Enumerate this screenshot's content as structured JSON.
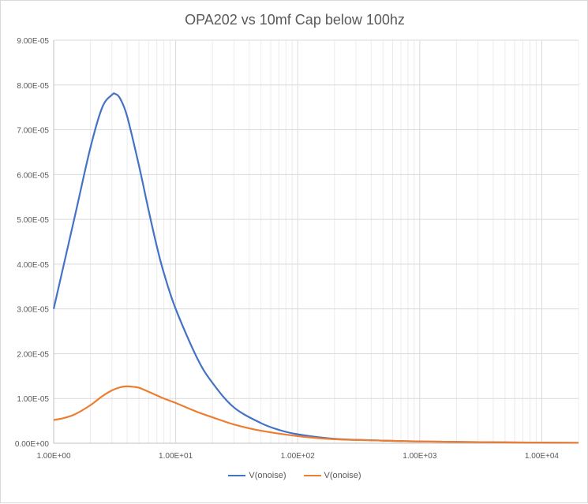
{
  "chart_data": {
    "type": "line",
    "title": "OPA202 vs 10mf Cap below 100hz",
    "xlabel": "",
    "ylabel": "",
    "xscale": "log",
    "xlim": [
      1,
      20000
    ],
    "ylim": [
      0,
      9e-05
    ],
    "grid": true,
    "legend_position": "bottom",
    "y_ticks": [
      "0.00E+00",
      "1.00E-05",
      "2.00E-05",
      "3.00E-05",
      "4.00E-05",
      "5.00E-05",
      "6.00E-05",
      "7.00E-05",
      "8.00E-05",
      "9.00E-05"
    ],
    "x_ticks": [
      "1.00E+00",
      "1.00E+01",
      "1.00E+02",
      "1.00E+03",
      "1.00E+04"
    ],
    "series": [
      {
        "name": "V(onoise)",
        "color": "#4472C4",
        "x": [
          1,
          1.5,
          2,
          2.5,
          3,
          3.2,
          3.5,
          4,
          5,
          6,
          7,
          8,
          10,
          15,
          20,
          30,
          50,
          70,
          100,
          200,
          500,
          1000,
          5000,
          20000
        ],
        "y": [
          3e-05,
          5.1e-05,
          6.6e-05,
          7.5e-05,
          7.78e-05,
          7.8e-05,
          7.7e-05,
          7.3e-05,
          6.2e-05,
          5.2e-05,
          4.4e-05,
          3.8e-05,
          3e-05,
          1.9e-05,
          1.35e-05,
          8e-06,
          4.5e-06,
          3e-06,
          2e-06,
          1e-06,
          6e-07,
          4e-07,
          2e-07,
          1e-07
        ]
      },
      {
        "name": "V(onoise)",
        "color": "#ED7D31",
        "x": [
          1,
          1.2,
          1.5,
          2,
          2.5,
          3,
          3.5,
          4,
          4.5,
          5,
          6,
          7,
          8,
          10,
          15,
          20,
          30,
          50,
          100,
          200,
          500,
          1000,
          5000,
          20000
        ],
        "y": [
          5.2e-06,
          5.6e-06,
          6.5e-06,
          8.5e-06,
          1.05e-05,
          1.18e-05,
          1.25e-05,
          1.27e-05,
          1.26e-05,
          1.24e-05,
          1.15e-05,
          1.07e-05,
          1e-05,
          9e-06,
          7e-06,
          5.8e-06,
          4.2e-06,
          2.8e-06,
          1.6e-06,
          9e-07,
          6e-07,
          4e-07,
          2e-07,
          1e-07
        ]
      }
    ]
  }
}
